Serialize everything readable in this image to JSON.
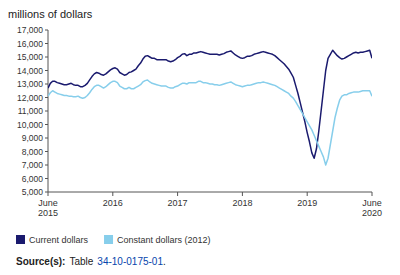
{
  "chart_data": {
    "type": "line",
    "title": "millions of dollars",
    "annotations": [
      "Source(s):",
      "Table",
      "34-10-0175-01",
      "."
    ],
    "categories": [
      "June\n2015",
      null,
      null,
      null,
      null,
      null,
      null,
      null,
      null,
      null,
      null,
      null,
      null,
      null,
      null,
      null,
      null,
      null,
      null,
      null,
      null,
      null,
      null,
      null,
      null,
      null,
      null,
      null,
      "2016",
      null,
      null,
      null,
      null,
      null,
      null,
      null,
      null,
      null,
      null,
      null,
      null,
      null,
      null,
      null,
      null,
      null,
      null,
      null,
      null,
      null,
      null,
      null,
      null,
      null,
      null,
      null,
      "2017",
      null,
      null,
      null,
      null,
      null,
      null,
      null,
      null,
      null,
      null,
      null,
      null,
      null,
      null,
      null,
      null,
      null,
      null,
      null,
      null,
      null,
      null,
      null,
      null,
      null,
      null,
      null,
      "2018",
      null,
      null,
      null,
      null,
      null,
      null,
      null,
      null,
      null,
      null,
      null,
      null,
      null,
      null,
      null,
      null,
      null,
      null,
      null,
      null,
      null,
      null,
      null,
      null,
      null,
      null,
      null,
      "2019",
      null,
      null,
      null,
      null,
      null,
      null,
      null,
      null,
      null,
      null,
      null,
      null,
      null,
      null,
      null,
      null,
      null,
      null,
      null,
      null,
      null,
      null,
      null,
      null,
      null,
      null,
      null,
      "June\n2020"
    ],
    "series": [
      {
        "name": "Current dollars",
        "color": "#1a1a6e",
        "values": [
          12700,
          13050,
          13200,
          13200,
          13100,
          13050,
          13000,
          12950,
          12950,
          13000,
          13050,
          12950,
          12900,
          12900,
          12800,
          12800,
          12900,
          13050,
          13300,
          13550,
          13750,
          13850,
          13800,
          13700,
          13650,
          13750,
          13900,
          14050,
          14150,
          14200,
          14100,
          13850,
          13750,
          13650,
          13700,
          13850,
          13900,
          14000,
          14100,
          14350,
          14550,
          14850,
          15050,
          15100,
          15000,
          14900,
          14900,
          14800,
          14800,
          14800,
          14800,
          14800,
          14700,
          14650,
          14700,
          14800,
          14950,
          15050,
          15200,
          15250,
          15100,
          15200,
          15200,
          15300,
          15300,
          15350,
          15400,
          15350,
          15300,
          15250,
          15200,
          15200,
          15200,
          15200,
          15150,
          15200,
          15250,
          15350,
          15400,
          15450,
          15300,
          15150,
          15050,
          14950,
          14900,
          14950,
          15050,
          15050,
          15100,
          15200,
          15250,
          15300,
          15350,
          15400,
          15350,
          15300,
          15250,
          15200,
          15100,
          14950,
          14800,
          14650,
          14500,
          14300,
          14100,
          13800,
          13500,
          12900,
          12300,
          11600,
          10900,
          10200,
          9400,
          8700,
          7900,
          7500,
          8200,
          9500,
          11000,
          12500,
          14000,
          14900,
          15200,
          15500,
          15300,
          15100,
          14950,
          14850,
          14900,
          15000,
          15100,
          15200,
          15300,
          15350,
          15300,
          15350,
          15350,
          15400,
          15450,
          15500,
          14900
        ]
      },
      {
        "name": "Constant dollars (2012)",
        "color": "#87ceeb",
        "values": [
          12100,
          12350,
          12500,
          12400,
          12300,
          12250,
          12200,
          12150,
          12150,
          12100,
          12100,
          12050,
          12050,
          12100,
          12000,
          11950,
          12000,
          12150,
          12350,
          12600,
          12800,
          12900,
          12900,
          12800,
          12700,
          12800,
          12950,
          13100,
          13200,
          13200,
          13100,
          12850,
          12750,
          12650,
          12650,
          12750,
          12650,
          12650,
          12750,
          12850,
          12950,
          13150,
          13250,
          13300,
          13150,
          13050,
          13000,
          12950,
          12900,
          12850,
          12850,
          12850,
          12750,
          12700,
          12700,
          12800,
          12850,
          12950,
          13050,
          13050,
          13000,
          13100,
          13100,
          13100,
          13100,
          13200,
          13200,
          13100,
          13100,
          13050,
          13000,
          13000,
          12950,
          12950,
          12900,
          12950,
          13000,
          13050,
          13100,
          13150,
          13050,
          12950,
          12900,
          12850,
          12800,
          12850,
          12900,
          12900,
          12950,
          13000,
          13050,
          13100,
          13100,
          13150,
          13100,
          13050,
          13000,
          12950,
          12900,
          12800,
          12700,
          12600,
          12500,
          12400,
          12300,
          12100,
          11950,
          11700,
          11400,
          11100,
          10800,
          10500,
          10200,
          9900,
          9600,
          9200,
          8800,
          8400,
          8000,
          7600,
          7000,
          7500,
          8500,
          9500,
          10500,
          11200,
          11800,
          12100,
          12200,
          12200,
          12300,
          12350,
          12400,
          12400,
          12400,
          12450,
          12500,
          12500,
          12500,
          12500,
          12100
        ]
      }
    ],
    "ylim": [
      5000,
      17000
    ],
    "yticks": [
      {
        "value": 5000,
        "label": "5,000"
      },
      {
        "value": 6000,
        "label": "6,000"
      },
      {
        "value": 7000,
        "label": "7,000"
      },
      {
        "value": 8000,
        "label": "8,000"
      },
      {
        "value": 9000,
        "label": "9,000"
      },
      {
        "value": 10000,
        "label": "10,000"
      },
      {
        "value": 11000,
        "label": "11,000"
      },
      {
        "value": 12000,
        "label": "12,000"
      },
      {
        "value": 13000,
        "label": "13,000"
      },
      {
        "value": 14000,
        "label": "14,000"
      },
      {
        "value": 15000,
        "label": "15,000"
      },
      {
        "value": 16000,
        "label": "16,000"
      },
      {
        "value": 17000,
        "label": "17,000"
      }
    ],
    "grid": false,
    "legend": "bottom"
  }
}
